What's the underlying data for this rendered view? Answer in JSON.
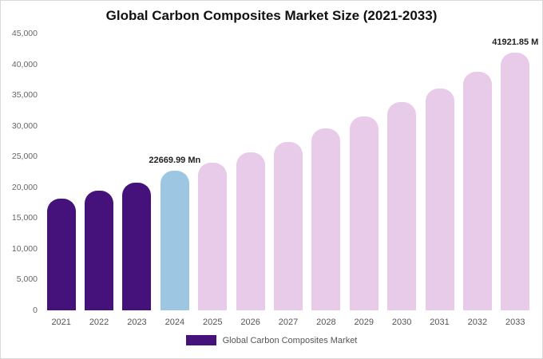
{
  "chart_data": {
    "type": "bar",
    "title": "Global Carbon Composites Market Size (2021-2033)",
    "xlabel": "",
    "ylabel": "",
    "categories": [
      "2021",
      "2022",
      "2023",
      "2024",
      "2025",
      "2026",
      "2027",
      "2028",
      "2029",
      "2030",
      "2031",
      "2032",
      "2033"
    ],
    "values": [
      18100,
      19450,
      20750,
      22669.99,
      24000,
      25680,
      27360,
      29570,
      31510,
      33850,
      36050,
      38780,
      41921.85
    ],
    "colors": [
      "#44127a",
      "#44127a",
      "#44127a",
      "#9dc6e2",
      "#e8cae9",
      "#e8cae9",
      "#e8cae9",
      "#e8cae9",
      "#e8cae9",
      "#e8cae9",
      "#e8cae9",
      "#e8cae9",
      "#e8cae9"
    ],
    "ylim": [
      0,
      45000
    ],
    "yticks": [
      "0",
      "5,000",
      "10,000",
      "15,000",
      "20,000",
      "25,000",
      "30,000",
      "35,000",
      "40,000",
      "45,000"
    ],
    "annotations": [
      {
        "category": "2024",
        "label": "22669.99 Mn"
      },
      {
        "category": "2033",
        "label": "41921.85 M"
      }
    ],
    "legend": "Global Carbon Composites Market",
    "legend_color": "#44127a",
    "grid": false,
    "legend_position": "bottom"
  }
}
